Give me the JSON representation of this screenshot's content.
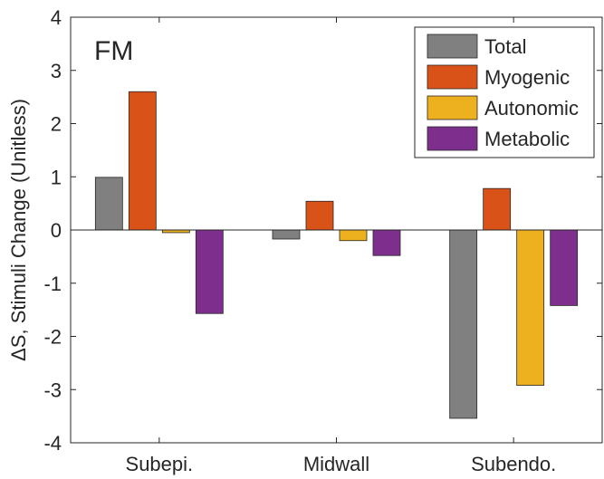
{
  "chart_data": {
    "type": "bar",
    "annotation": "FM",
    "ylabel": "ΔS, Stimuli Change (Unitless)",
    "xlabel": "",
    "categories": [
      "Subepi.",
      "Midwall",
      "Subendo."
    ],
    "ylim": [
      -4,
      4
    ],
    "yticks": [
      -4,
      -3,
      -2,
      -1,
      0,
      1,
      2,
      3,
      4
    ],
    "ytick_labels": [
      "-4",
      "-3",
      "-2",
      "-1",
      "0",
      "1",
      "2",
      "3",
      "4"
    ],
    "grid": false,
    "legend_position": "top-right",
    "series": [
      {
        "name": "Total",
        "color": "#808080",
        "values": [
          0.99,
          -0.17,
          -3.54
        ]
      },
      {
        "name": "Myogenic",
        "color": "#D95319",
        "values": [
          2.6,
          0.54,
          0.78
        ]
      },
      {
        "name": "Autonomic",
        "color": "#EDB120",
        "values": [
          -0.05,
          -0.2,
          -2.92
        ]
      },
      {
        "name": "Metabolic",
        "color": "#7E2F8E",
        "values": [
          -1.57,
          -0.48,
          -1.42
        ]
      }
    ]
  }
}
